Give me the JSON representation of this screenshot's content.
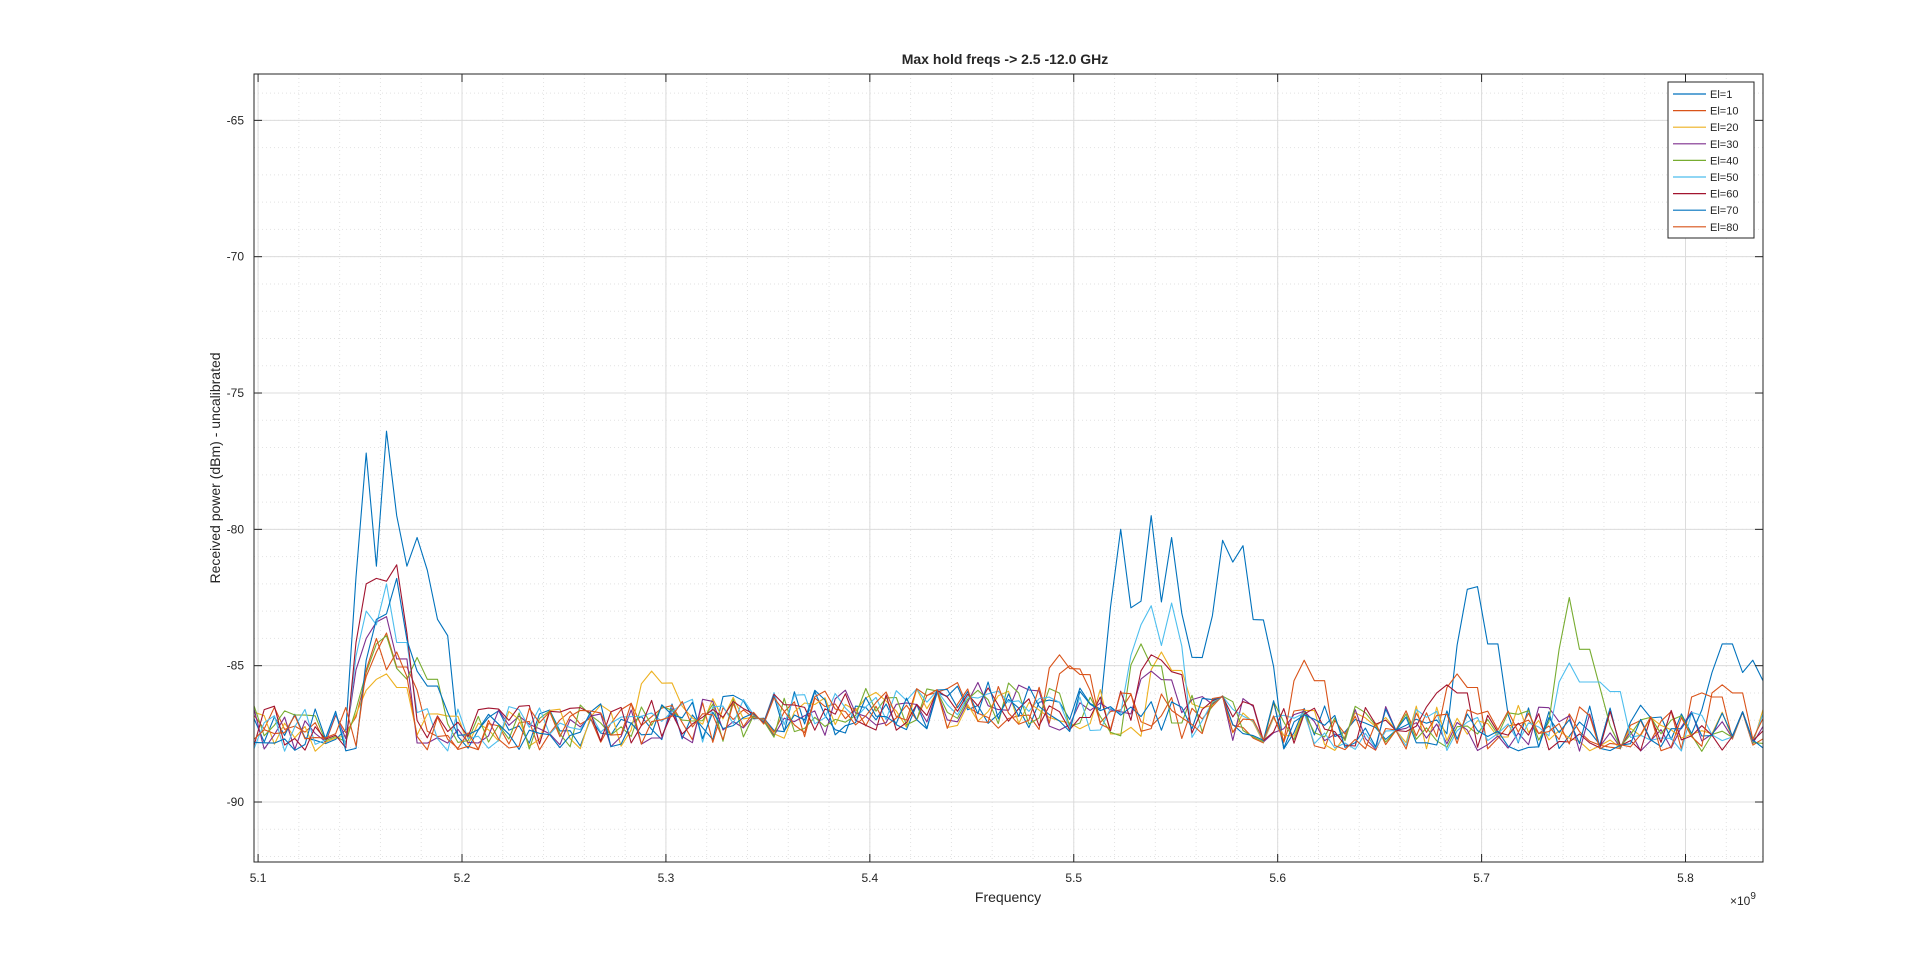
{
  "chart_data": {
    "type": "line",
    "title": "Max hold freqs -> 2.5 -12.0 GHz",
    "xlabel": "Frequency",
    "ylabel": "Received power (dBm) - uncalibrated",
    "x_exponent_label": "×10",
    "x_exponent_power": "9",
    "xlim": [
      5.098,
      5.838
    ],
    "ylim": [
      -92.2,
      -63.3
    ],
    "x_ticks": [
      5.1,
      5.2,
      5.3,
      5.4,
      5.5,
      5.6,
      5.7,
      5.8
    ],
    "x_tick_labels": [
      "5.1",
      "5.2",
      "5.3",
      "5.4",
      "5.5",
      "5.6",
      "5.7",
      "5.8"
    ],
    "y_ticks": [
      -90,
      -85,
      -80,
      -75,
      -70,
      -65
    ],
    "y_tick_labels": [
      "-90",
      "-85",
      "-80",
      "-75",
      "-70",
      "-65"
    ],
    "grid": true,
    "minor_grid": true,
    "legend_position": "top-right",
    "series": [
      {
        "name": "El=1",
        "color": "#0072bd",
        "peaks": [
          [
            5.155,
            -77.2
          ],
          [
            5.165,
            -76.4
          ],
          [
            5.17,
            -79.5
          ],
          [
            5.175,
            -82.7
          ],
          [
            5.18,
            -80.3
          ],
          [
            5.185,
            -81.5
          ],
          [
            5.525,
            -80.0
          ],
          [
            5.538,
            -79.5
          ],
          [
            5.548,
            -80.3
          ],
          [
            5.555,
            -83.5
          ],
          [
            5.562,
            -84.8
          ],
          [
            5.575,
            -80.4
          ],
          [
            5.58,
            -81.2
          ],
          [
            5.585,
            -80.6
          ],
          [
            5.59,
            -84.0
          ],
          [
            5.695,
            -82.2
          ],
          [
            5.7,
            -82.1
          ],
          [
            5.82,
            -84.2
          ],
          [
            5.825,
            -84.2
          ],
          [
            5.835,
            -84.8
          ]
        ]
      },
      {
        "name": "El=10",
        "color": "#d95319",
        "peaks": [
          [
            5.158,
            -84.5
          ],
          [
            5.165,
            -83.8
          ],
          [
            5.17,
            -85.5
          ],
          [
            5.495,
            -84.6
          ],
          [
            5.69,
            -85.3
          ],
          [
            5.81,
            -86.0
          ]
        ]
      },
      {
        "name": "El=20",
        "color": "#edb120",
        "peaks": [
          [
            5.16,
            -85.5
          ],
          [
            5.165,
            -85.3
          ],
          [
            5.295,
            -85.2
          ],
          [
            5.545,
            -84.5
          ]
        ]
      },
      {
        "name": "El=30",
        "color": "#7e2f8e",
        "peaks": [
          [
            5.155,
            -84.0
          ],
          [
            5.16,
            -83.4
          ],
          [
            5.165,
            -83.2
          ],
          [
            5.54,
            -85.2
          ]
        ]
      },
      {
        "name": "El=40",
        "color": "#77ac30",
        "peaks": [
          [
            5.157,
            -84.2
          ],
          [
            5.163,
            -83.9
          ],
          [
            5.18,
            -84.7
          ],
          [
            5.535,
            -84.2
          ],
          [
            5.745,
            -82.5
          ],
          [
            5.75,
            -85.3
          ]
        ]
      },
      {
        "name": "El=50",
        "color": "#4dbeee",
        "peaks": [
          [
            5.155,
            -83.0
          ],
          [
            5.16,
            -83.5
          ],
          [
            5.165,
            -82.0
          ],
          [
            5.535,
            -83.5
          ],
          [
            5.54,
            -82.8
          ],
          [
            5.547,
            -82.7
          ],
          [
            5.745,
            -84.9
          ],
          [
            5.76,
            -85.6
          ]
        ]
      },
      {
        "name": "El=60",
        "color": "#a2142f",
        "peaks": [
          [
            5.153,
            -82.0
          ],
          [
            5.158,
            -81.8
          ],
          [
            5.163,
            -81.9
          ],
          [
            5.168,
            -81.3
          ],
          [
            5.54,
            -84.6
          ],
          [
            5.545,
            -84.8
          ],
          [
            5.685,
            -85.7
          ]
        ]
      },
      {
        "name": "El=70",
        "color": "#0072bd",
        "peaks": [
          [
            5.157,
            -83.3
          ],
          [
            5.163,
            -83.1
          ],
          [
            5.168,
            -81.8
          ],
          [
            5.18,
            -85.2
          ]
        ]
      },
      {
        "name": "El=80",
        "color": "#d95319",
        "peaks": [
          [
            5.16,
            -84.0
          ],
          [
            5.166,
            -84.5
          ],
          [
            5.5,
            -85.0
          ],
          [
            5.615,
            -84.8
          ],
          [
            5.82,
            -85.7
          ]
        ]
      }
    ]
  }
}
